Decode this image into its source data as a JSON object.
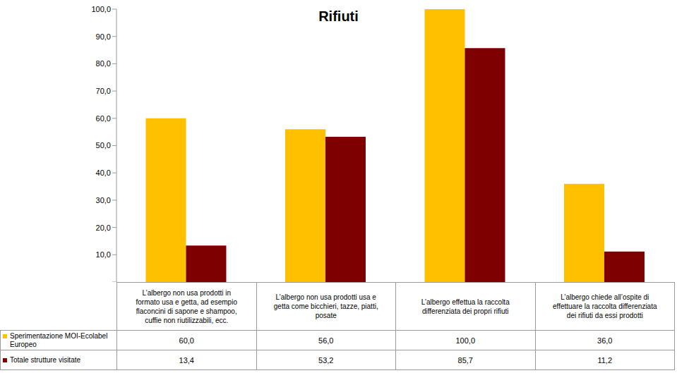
{
  "chart_data": {
    "type": "bar",
    "title": "Rifiuti",
    "categories": [
      "L’albergo non usa prodotti in formato usa e getta, ad esempio flaconcini di sapone e shampoo, cuffie non riutilizzabili,  ecc.",
      "L’albergo non usa prodotti usa e getta come bicchieri, tazze, piatti, posate",
      "L’albergo effettua la raccolta differenziata dei propri rifiuti",
      "L’albergo chiede all’ospite  di effettuare la raccolta differenziata dei rifiuti da essi prodotti"
    ],
    "series": [
      {
        "name": "Sperimentazione MOI-Ecolabel Europeo",
        "color": "#FFC000",
        "values": [
          60.0,
          56.0,
          100.0,
          36.0
        ],
        "value_labels": [
          "60,0",
          "56,0",
          "100,0",
          "36,0"
        ]
      },
      {
        "name": "Totale strutture visitate",
        "color": "#7F0000",
        "values": [
          13.4,
          53.2,
          85.7,
          11.2
        ],
        "value_labels": [
          "13,4",
          "53,2",
          "85,7",
          "11,2"
        ]
      }
    ],
    "ylim": [
      0,
      100
    ],
    "yticks": [
      {
        "value": 0,
        "label": "-"
      },
      {
        "value": 10,
        "label": "10,0"
      },
      {
        "value": 20,
        "label": "20,0"
      },
      {
        "value": 30,
        "label": "30,0"
      },
      {
        "value": 40,
        "label": "40,0"
      },
      {
        "value": 50,
        "label": "50,0"
      },
      {
        "value": 60,
        "label": "60,0"
      },
      {
        "value": 70,
        "label": "70,0"
      },
      {
        "value": 80,
        "label": "80,0"
      },
      {
        "value": 90,
        "label": "90,0"
      },
      {
        "value": 100,
        "label": "100,0"
      }
    ],
    "grid": false
  }
}
